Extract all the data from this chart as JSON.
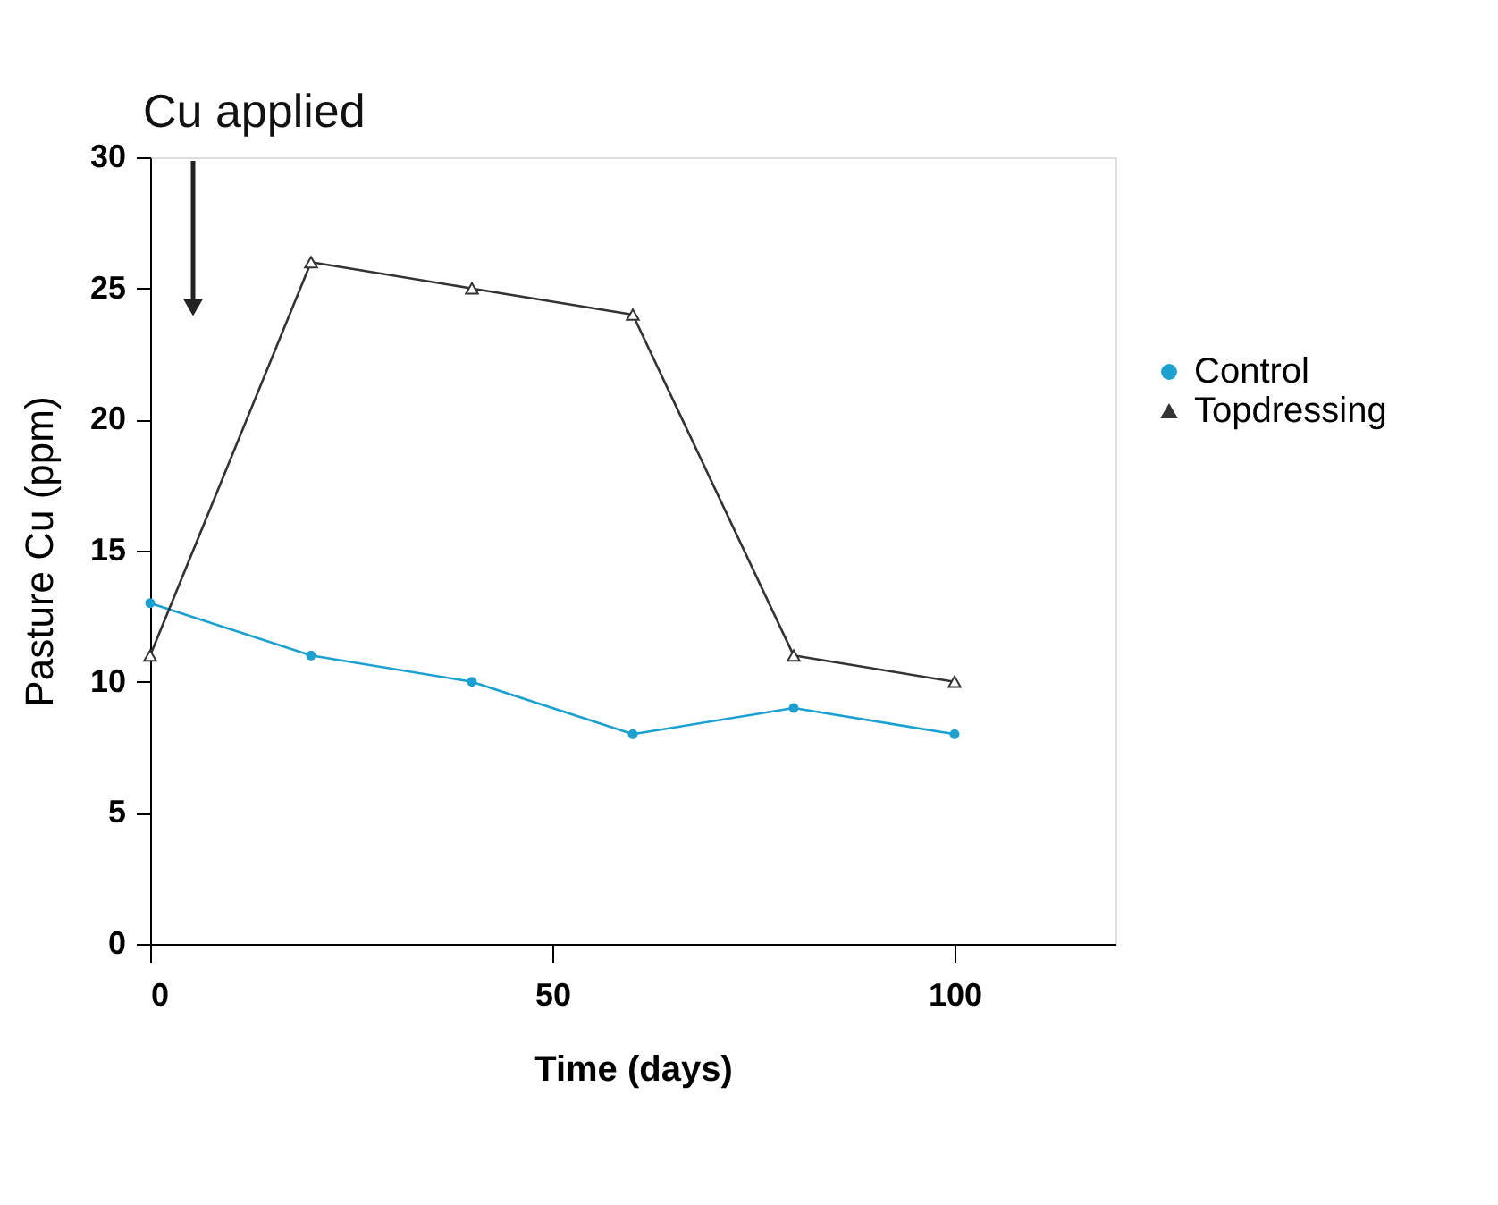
{
  "chart_data": {
    "type": "line",
    "xlabel": "Time (days)",
    "ylabel": "Pasture Cu (ppm)",
    "x": [
      0,
      20,
      40,
      60,
      80,
      100
    ],
    "series": [
      {
        "name": "Control",
        "color": "#1ba1d1",
        "marker": "circle",
        "values": [
          13,
          11,
          10,
          8,
          9,
          8
        ]
      },
      {
        "name": "Topdressing",
        "color": "#333333",
        "marker": "triangle",
        "values": [
          11,
          26,
          25,
          24,
          11,
          10
        ]
      }
    ],
    "xlim": [
      0,
      120
    ],
    "xticks": [
      0,
      50,
      100
    ],
    "ylim": [
      0,
      30
    ],
    "yticks": [
      0,
      5,
      10,
      15,
      20,
      25,
      30
    ],
    "annotations": [
      "Cu applied"
    ],
    "legend": "right",
    "grid": false
  }
}
